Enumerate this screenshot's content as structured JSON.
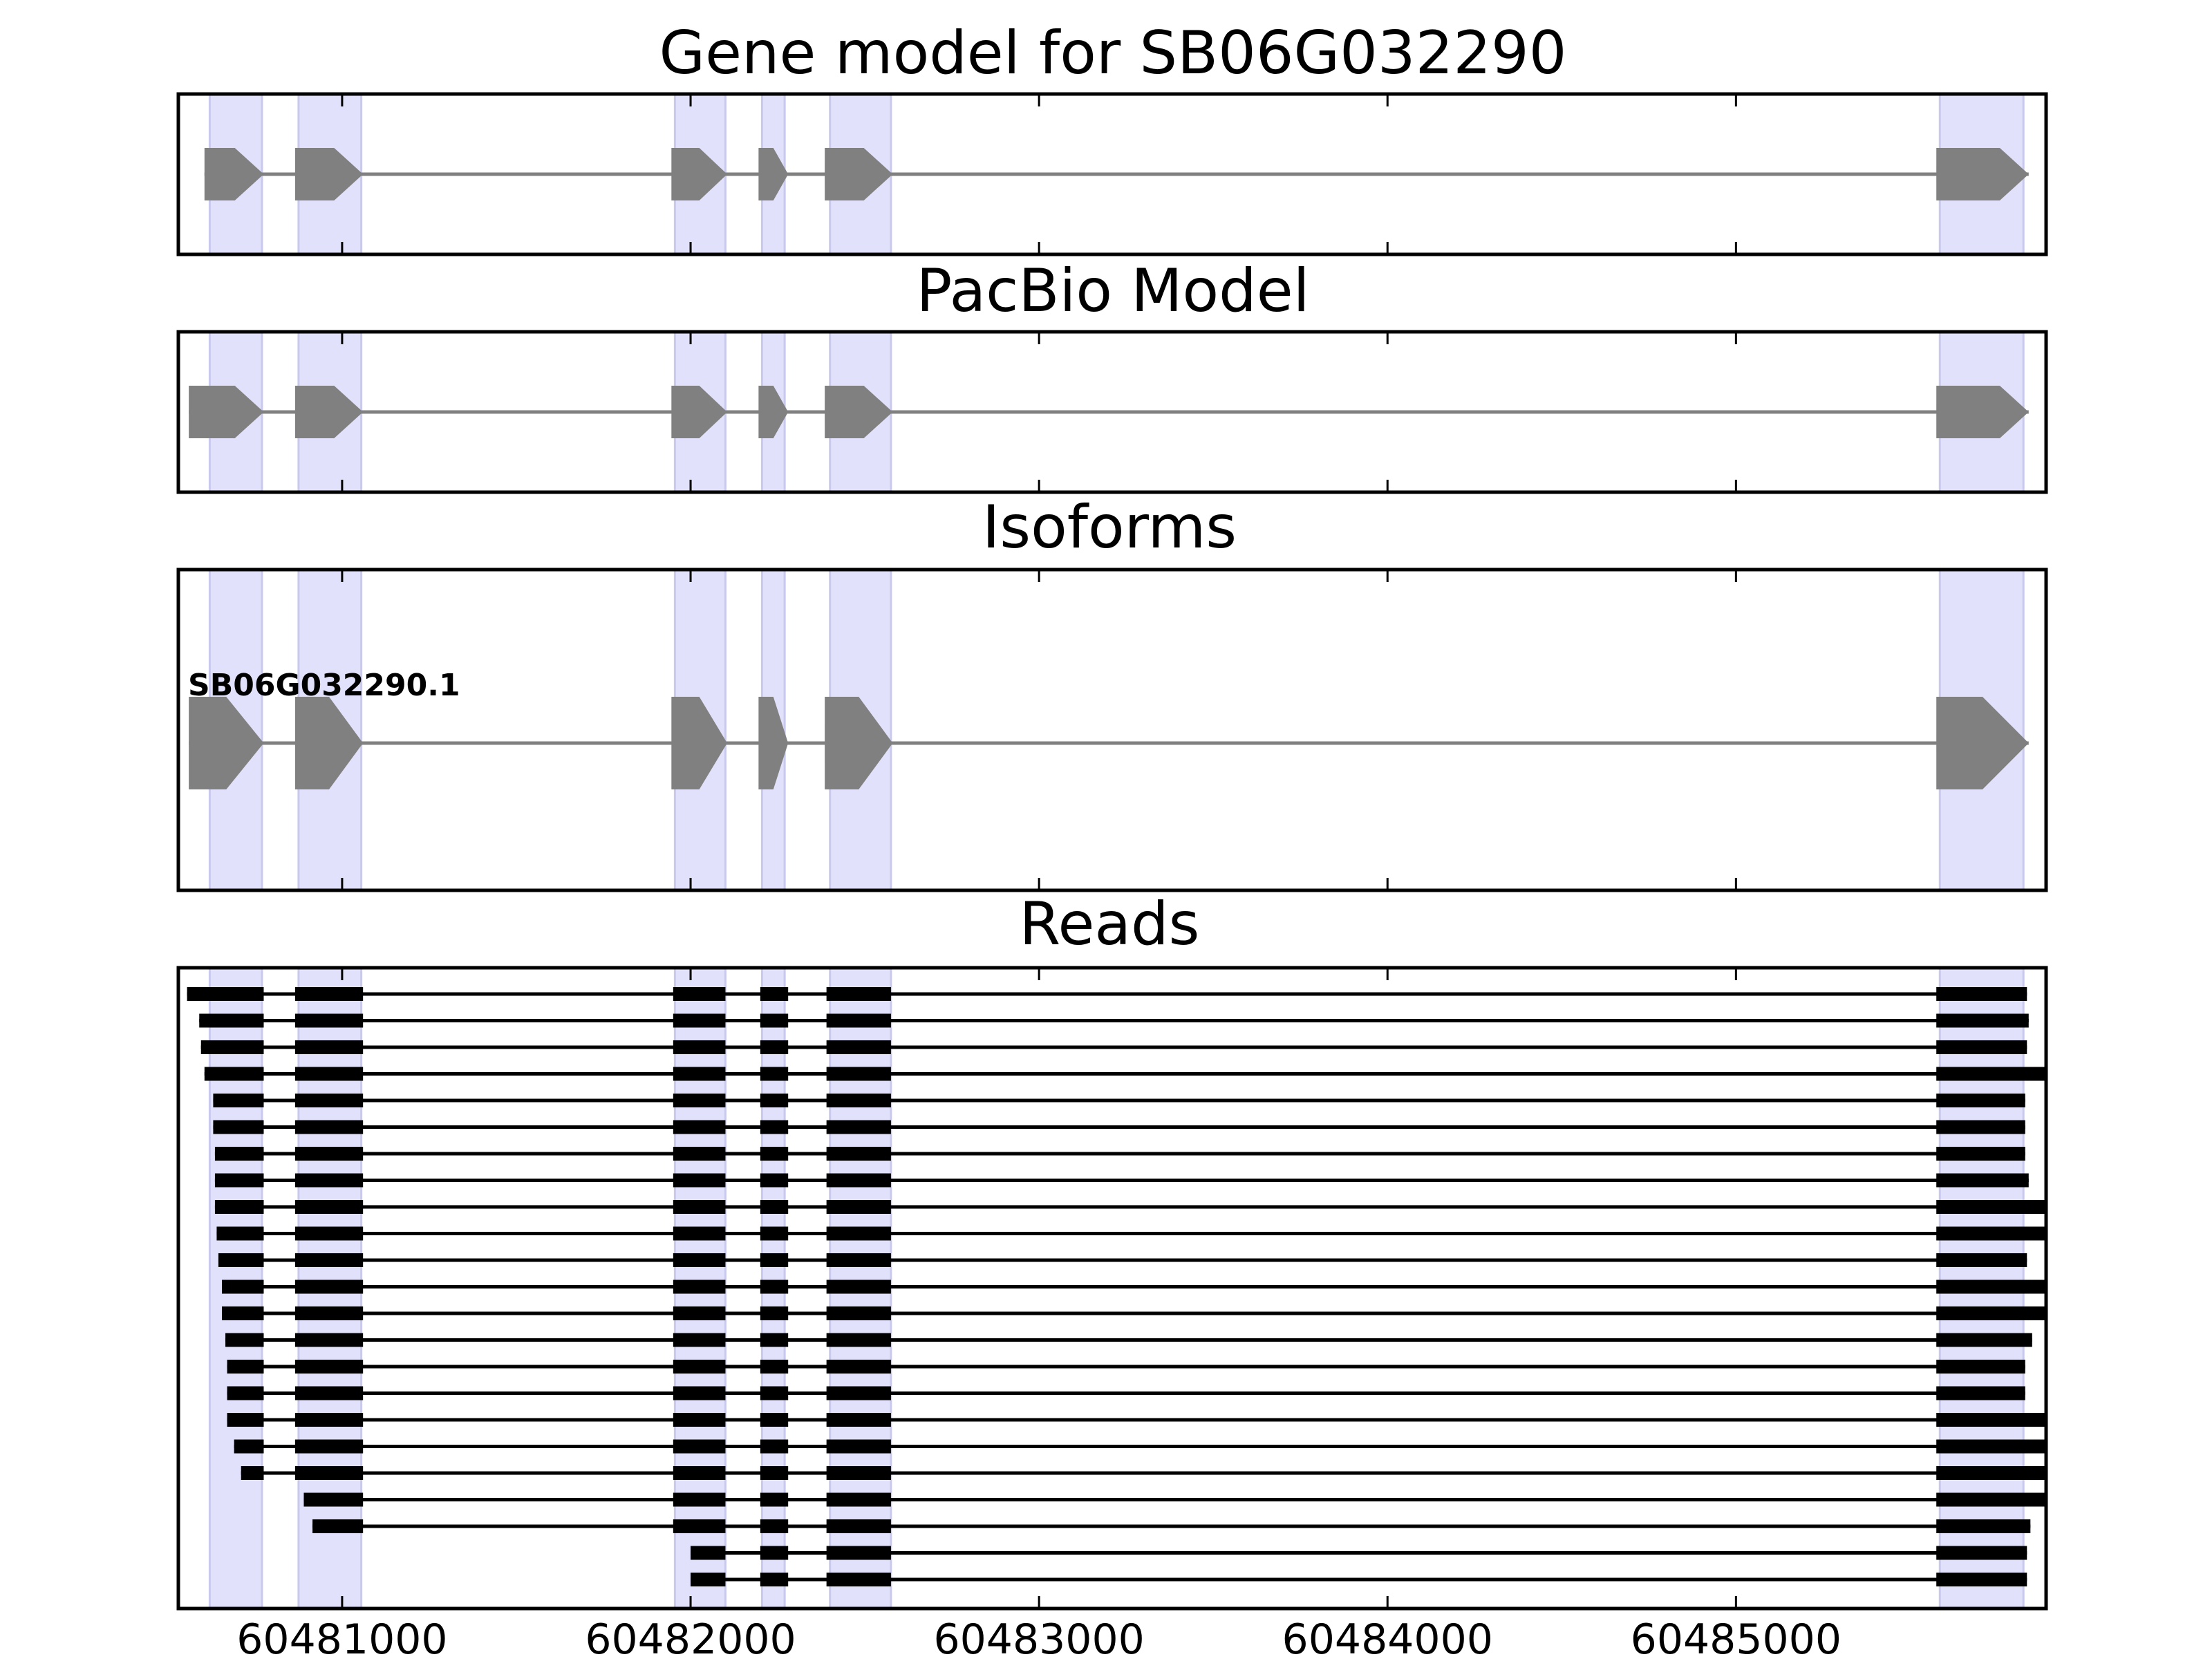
{
  "colors": {
    "exon_gray": "#808080",
    "intron_gray": "#808080",
    "highlight": "#e1e1fb",
    "highlight_edge": "#c9c9ee",
    "read_black": "#000000",
    "frame": "#000000"
  },
  "chart_data": {
    "type": "gene-model",
    "x_ticks": [
      60481000,
      60482000,
      60483000,
      60484000,
      60485000
    ],
    "x_tick_labels": [
      "60481000",
      "60482000",
      "60483000",
      "60484000",
      "60485000"
    ],
    "xlim": [
      60480530,
      60485890
    ],
    "strand": "+",
    "highlight_regions": [
      [
        60480620,
        60480770
      ],
      [
        60480875,
        60481055
      ],
      [
        60481955,
        60482100
      ],
      [
        60482205,
        60482270
      ],
      [
        60482400,
        60482575
      ],
      [
        60485585,
        60485825
      ]
    ],
    "panels": [
      {
        "title": "Gene model for SB06G032290",
        "exons": [
          [
            60480605,
            60480775
          ],
          [
            60480865,
            60481060
          ],
          [
            60481945,
            60482105
          ],
          [
            60482195,
            60482280
          ],
          [
            60482385,
            60482580
          ],
          [
            60485575,
            60485840
          ]
        ]
      },
      {
        "title": "PacBio Model",
        "exons": [
          [
            60480560,
            60480775
          ],
          [
            60480865,
            60481060
          ],
          [
            60481945,
            60482105
          ],
          [
            60482195,
            60482280
          ],
          [
            60482385,
            60482580
          ],
          [
            60485575,
            60485840
          ]
        ]
      },
      {
        "title": "Isoforms",
        "isoforms": [
          {
            "name": "SB06G032290.1",
            "exons": [
              [
                60480560,
                60480775
              ],
              [
                60480865,
                60481060
              ],
              [
                60481945,
                60482105
              ],
              [
                60482195,
                60482280
              ],
              [
                60482385,
                60482580
              ],
              [
                60485575,
                60485840
              ]
            ]
          }
        ]
      },
      {
        "title": "Reads",
        "reads": [
          [
            60480555,
            60485835
          ],
          [
            60480590,
            60485840
          ],
          [
            60480595,
            60485835
          ],
          [
            60480605,
            60485890
          ],
          [
            60480630,
            60485830
          ],
          [
            60480630,
            60485830
          ],
          [
            60480635,
            60485830
          ],
          [
            60480635,
            60485840
          ],
          [
            60480635,
            60485890
          ],
          [
            60480640,
            60485890
          ],
          [
            60480645,
            60485835
          ],
          [
            60480655,
            60485890
          ],
          [
            60480655,
            60485890
          ],
          [
            60480665,
            60485850
          ],
          [
            60480670,
            60485830
          ],
          [
            60480670,
            60485830
          ],
          [
            60480670,
            60485890
          ],
          [
            60480690,
            60485890
          ],
          [
            60480710,
            60485890
          ],
          [
            60480890,
            60485890
          ],
          [
            60480915,
            60485845
          ],
          [
            60482000,
            60485835
          ],
          [
            60482000,
            60485835
          ]
        ],
        "read_exons": [
          [
            60481950,
            60482100
          ],
          [
            60482200,
            60482280
          ],
          [
            60482390,
            60482575
          ],
          [
            60485575,
            null
          ]
        ],
        "read_early_exons": [
          [
            null,
            60480775
          ],
          [
            60480865,
            60481060
          ]
        ]
      }
    ]
  }
}
